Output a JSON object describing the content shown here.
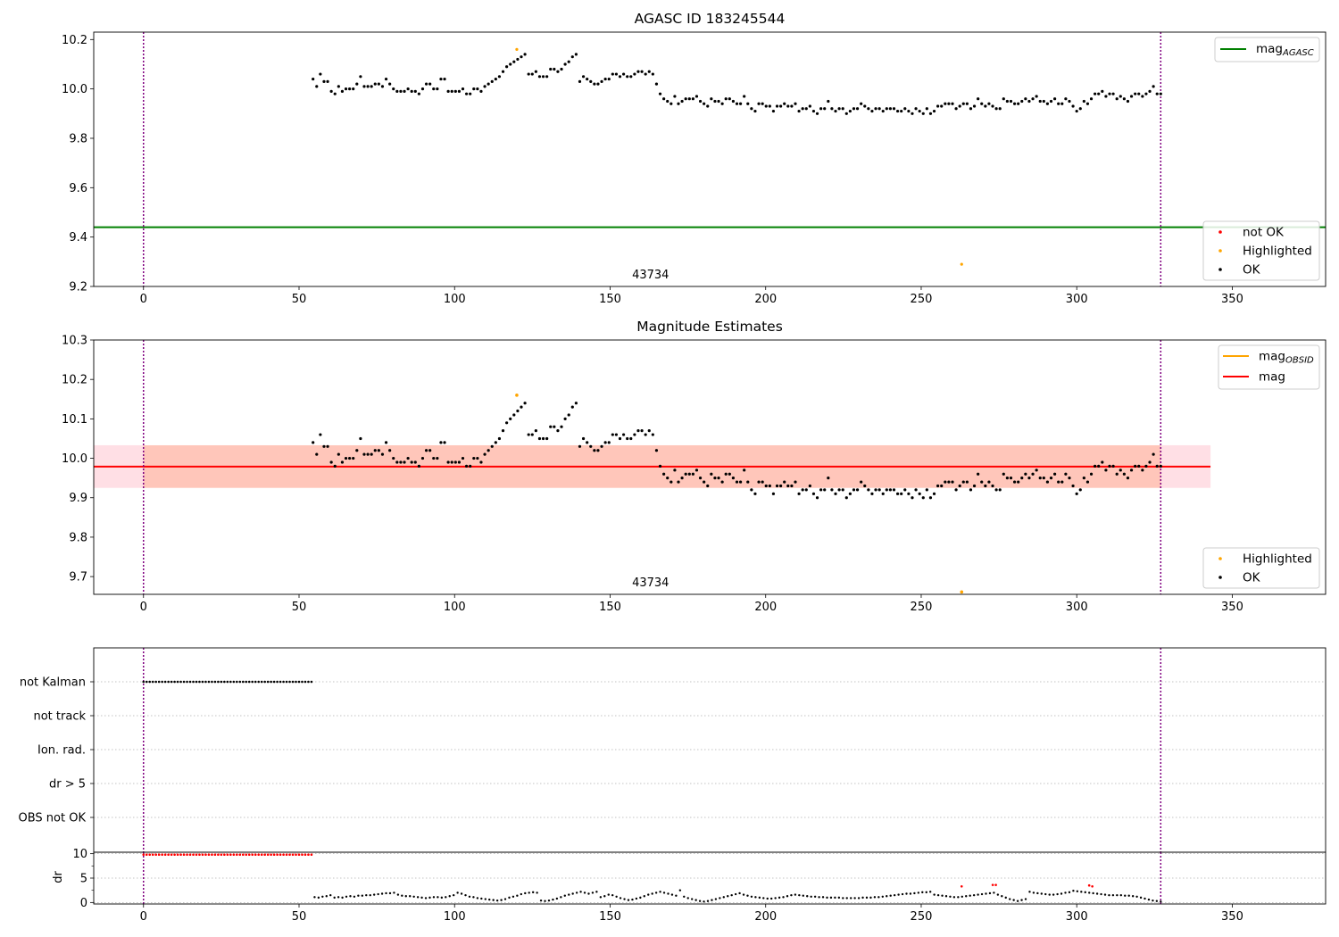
{
  "colors": {
    "ok": "#000000",
    "highlighted": "#ffa500",
    "not_ok": "#ff0000",
    "mag_agasc": "#008000",
    "mag_obsid": "#ffa500",
    "mag": "#ff0000",
    "band_obsid": "#ffa07a",
    "band_mag": "#ffc0cb",
    "obs_boundary": "#800080",
    "flag_grid": "#b0b0b0"
  },
  "chart_data": [
    {
      "type": "scatter",
      "title": "AGASC ID 183245544",
      "xlim": [
        -16,
        380
      ],
      "ylim": [
        9.2,
        10.23
      ],
      "xticks": [
        "0",
        "50",
        "100",
        "150",
        "200",
        "250",
        "300",
        "350"
      ],
      "yticks": [
        "9.2",
        "9.4",
        "9.6",
        "9.8",
        "10.0",
        "10.2"
      ],
      "ytick_values": [
        9.2,
        9.4,
        9.6,
        9.8,
        10.0,
        10.2
      ],
      "observation_boundaries": [
        0,
        327
      ],
      "obsid_annotation": {
        "text": "43734",
        "x": 163
      },
      "reference_lines": [
        {
          "name": "mag_AGASC",
          "y": 9.44
        }
      ],
      "legend_lines": [
        {
          "label": "mag",
          "sub": "AGASC",
          "color": "#008000"
        }
      ],
      "legend_points": [
        {
          "label": "not OK",
          "color": "#ff0000"
        },
        {
          "label": "Highlighted",
          "color": "#ffa500"
        },
        {
          "label": "OK",
          "color": "#000000"
        }
      ],
      "series": [
        {
          "name": "OK",
          "x_range": [
            54.5,
            327
          ],
          "values": [
            10.04,
            10.01,
            10.06,
            10.03,
            10.03,
            9.99,
            9.98,
            10.01,
            9.99,
            10.0,
            10.0,
            10.0,
            10.02,
            10.05,
            10.01,
            10.01,
            10.01,
            10.02,
            10.02,
            10.01,
            10.04,
            10.02,
            10.0,
            9.99,
            9.99,
            9.99,
            10.0,
            9.99,
            9.99,
            9.98,
            10.0,
            10.02,
            10.02,
            10.0,
            10.0,
            10.04,
            10.04,
            9.99,
            9.99,
            9.99,
            9.99,
            10.0,
            9.98,
            9.98,
            10.0,
            10.0,
            9.99,
            10.01,
            10.02,
            10.03,
            10.04,
            10.05,
            10.07,
            10.09,
            10.1,
            10.11,
            10.12,
            10.13,
            10.14,
            10.06,
            10.06,
            10.07,
            10.05,
            10.05,
            10.05,
            10.08,
            10.08,
            10.07,
            10.08,
            10.1,
            10.11,
            10.13,
            10.14,
            10.03,
            10.05,
            10.04,
            10.03,
            10.02,
            10.02,
            10.03,
            10.04,
            10.04,
            10.06,
            10.06,
            10.05,
            10.06,
            10.05,
            10.05,
            10.06,
            10.07,
            10.07,
            10.06,
            10.07,
            10.06,
            10.02,
            9.98,
            9.96,
            9.95,
            9.94,
            9.97,
            9.94,
            9.95,
            9.96,
            9.96,
            9.96,
            9.97,
            9.95,
            9.94,
            9.93,
            9.96,
            9.95,
            9.95,
            9.94,
            9.96,
            9.96,
            9.95,
            9.94,
            9.94,
            9.97,
            9.94,
            9.92,
            9.91,
            9.94,
            9.94,
            9.93,
            9.93,
            9.91,
            9.93,
            9.93,
            9.94,
            9.93,
            9.93,
            9.94,
            9.91,
            9.92,
            9.92,
            9.93,
            9.91,
            9.9,
            9.92,
            9.92,
            9.95,
            9.92,
            9.91,
            9.92,
            9.92,
            9.9,
            9.91,
            9.92,
            9.92,
            9.94,
            9.93,
            9.92,
            9.91,
            9.92,
            9.92,
            9.91,
            9.92,
            9.92,
            9.92,
            9.91,
            9.91,
            9.92,
            9.91,
            9.9,
            9.92,
            9.91,
            9.9,
            9.92,
            9.9,
            9.91,
            9.93,
            9.93,
            9.94,
            9.94,
            9.94,
            9.92,
            9.93,
            9.94,
            9.94,
            9.92,
            9.93,
            9.96,
            9.94,
            9.93,
            9.94,
            9.93,
            9.92,
            9.92,
            9.96,
            9.95,
            9.95,
            9.94,
            9.94,
            9.95,
            9.96,
            9.95,
            9.96,
            9.97,
            9.95,
            9.95,
            9.94,
            9.95,
            9.96,
            9.94,
            9.94,
            9.96,
            9.95,
            9.93,
            9.91,
            9.92,
            9.95,
            9.94,
            9.96,
            9.98,
            9.98,
            9.99,
            9.97,
            9.98,
            9.98,
            9.96,
            9.97,
            9.96,
            9.95,
            9.97,
            9.98,
            9.98,
            9.97,
            9.98,
            9.99,
            10.01,
            9.98,
            9.98
          ]
        },
        {
          "name": "Highlighted",
          "x": [
            120,
            263
          ],
          "y": [
            10.16,
            9.29
          ]
        }
      ]
    },
    {
      "type": "scatter",
      "title": "Magnitude Estimates",
      "xlim": [
        -16,
        380
      ],
      "ylim": [
        9.655,
        10.3
      ],
      "xticks": [
        "0",
        "50",
        "100",
        "150",
        "200",
        "250",
        "300",
        "350"
      ],
      "yticks": [
        "9.7",
        "9.8",
        "9.9",
        "10.0",
        "10.1",
        "10.2",
        "10.3"
      ],
      "ytick_values": [
        9.7,
        9.8,
        9.9,
        10.0,
        10.1,
        10.2,
        10.3
      ],
      "observation_boundaries": [
        0,
        327
      ],
      "obsid_annotation": {
        "text": "43734",
        "x": 163
      },
      "reference_lines": [
        {
          "name": "mag_OBSID",
          "y": 9.979,
          "x_range": [
            -16,
            343
          ]
        },
        {
          "name": "mag",
          "y": 9.979,
          "x_range": [
            -16,
            343
          ]
        }
      ],
      "bands": [
        {
          "name": "mag_OBSID",
          "y_range": [
            9.925,
            10.033
          ],
          "x_range": [
            0,
            327
          ]
        },
        {
          "name": "mag",
          "y_range": [
            9.925,
            10.033
          ],
          "x_range": [
            -16,
            343
          ]
        }
      ],
      "legend_lines": [
        {
          "label": "mag",
          "sub": "OBSID",
          "color": "#ffa500"
        },
        {
          "label": "mag",
          "sub": "",
          "color": "#ff0000"
        }
      ],
      "legend_points": [
        {
          "label": "Highlighted",
          "color": "#ffa500"
        },
        {
          "label": "OK",
          "color": "#000000"
        }
      ],
      "series": [
        {
          "name": "OK",
          "same_as_panel": 0
        },
        {
          "name": "Highlighted",
          "x": [
            120,
            263
          ],
          "y": [
            10.16,
            9.66
          ]
        }
      ]
    },
    {
      "type": "scatter",
      "title": "",
      "xlim": [
        -16,
        380
      ],
      "xticks": [
        "0",
        "50",
        "100",
        "150",
        "200",
        "250",
        "300",
        "350"
      ],
      "observation_boundaries": [
        0,
        327
      ],
      "flag_rows": [
        "not Kalman",
        "not track",
        "Ion. rad.",
        "dr > 5",
        "OBS not OK"
      ],
      "flags": [
        {
          "row": "not Kalman",
          "x_range": [
            0,
            54
          ],
          "count": 55
        }
      ]
    },
    {
      "type": "scatter",
      "title": "",
      "ylabel": "dr",
      "xlim": [
        -16,
        380
      ],
      "ylim": [
        -0.3,
        10.3
      ],
      "xticks": [
        "0",
        "50",
        "100",
        "150",
        "200",
        "250",
        "300",
        "350"
      ],
      "yticks": [
        "0",
        "5",
        "10"
      ],
      "ytick_values": [
        0,
        5,
        10
      ],
      "observation_boundaries": [
        0,
        327
      ],
      "series": [
        {
          "name": "not OK",
          "x_range": [
            0,
            54
          ],
          "count": 55,
          "y": 9.8
        },
        {
          "name": "OK",
          "x_range": [
            55,
            327
          ],
          "values": [
            1.1,
            1.0,
            1.2,
            1.3,
            1.5,
            1.0,
            1.1,
            1.0,
            1.2,
            1.3,
            1.2,
            1.4,
            1.4,
            1.5,
            1.5,
            1.6,
            1.7,
            1.8,
            1.9,
            1.9,
            2.0,
            1.6,
            1.4,
            1.3,
            1.3,
            1.2,
            1.1,
            1.0,
            0.9,
            1.0,
            1.1,
            1.1,
            1.0,
            1.1,
            1.3,
            1.5,
            2.0,
            1.8,
            1.5,
            1.2,
            1.1,
            0.9,
            0.8,
            0.7,
            0.6,
            0.5,
            0.4,
            0.5,
            0.7,
            1.0,
            1.2,
            1.4,
            1.7,
            1.9,
            2.0,
            2.1,
            2.0,
            0.4,
            0.3,
            0.4,
            0.6,
            0.8,
            1.1,
            1.4,
            1.6,
            1.8,
            2.0,
            2.2,
            2.0,
            1.8,
            2.0,
            2.2,
            1.1,
            1.3,
            1.6,
            1.5,
            1.2,
            0.9,
            0.7,
            0.5,
            0.6,
            0.8,
            1.0,
            1.3,
            1.6,
            1.8,
            2.0,
            2.2,
            2.0,
            1.8,
            1.6,
            1.4,
            2.5,
            1.2,
            0.9,
            0.7,
            0.5,
            0.3,
            0.2,
            0.3,
            0.5,
            0.7,
            0.9,
            1.1,
            1.3,
            1.5,
            1.7,
            1.9,
            1.6,
            1.4,
            1.2,
            1.1,
            1.0,
            0.9,
            0.8,
            0.8,
            0.9,
            1.0,
            1.1,
            1.3,
            1.5,
            1.6,
            1.5,
            1.4,
            1.3,
            1.2,
            1.2,
            1.1,
            1.1,
            1.0,
            1.0,
            1.0,
            1.0,
            0.9,
            0.9,
            0.9,
            0.9,
            0.9,
            1.0,
            1.0,
            1.0,
            1.1,
            1.1,
            1.2,
            1.3,
            1.4,
            1.5,
            1.6,
            1.7,
            1.8,
            1.8,
            1.9,
            2.0,
            2.1,
            2.1,
            2.2,
            1.6,
            1.5,
            1.4,
            1.3,
            1.2,
            1.1,
            1.1,
            1.2,
            1.3,
            1.4,
            1.5,
            1.6,
            1.7,
            1.8,
            1.9,
            2.0,
            1.6,
            1.3,
            1.0,
            0.7,
            0.5,
            0.3,
            0.5,
            0.7,
            2.2,
            2.0,
            1.9,
            1.8,
            1.7,
            1.6,
            1.6,
            1.7,
            1.8,
            2.0,
            2.1,
            2.4,
            2.3,
            2.2,
            2.1,
            2.0,
            1.9,
            1.8,
            1.7,
            1.6,
            1.5,
            1.5,
            1.5,
            1.5,
            1.4,
            1.4,
            1.3,
            1.2,
            1.0,
            0.8,
            0.6,
            0.4,
            0.3,
            0.2
          ]
        },
        {
          "name": "not OK",
          "x": [
            263,
            273,
            274,
            304,
            305
          ],
          "y": [
            3.3,
            3.6,
            3.6,
            3.5,
            3.3
          ]
        }
      ]
    }
  ]
}
